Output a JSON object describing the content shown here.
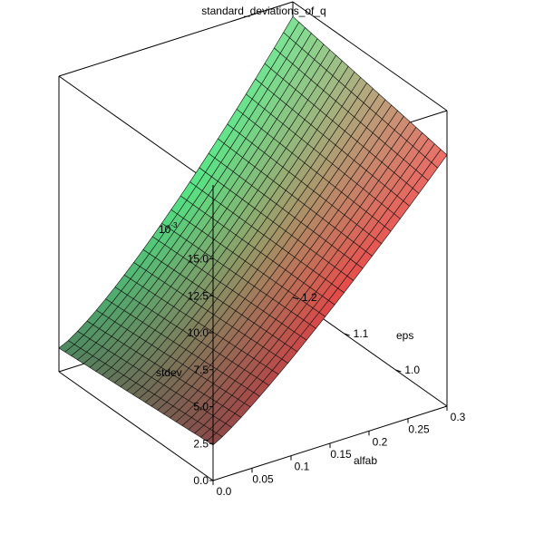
{
  "chart_data": {
    "type": "surface3d",
    "title": "standard_deviations_of_q",
    "x_axis": {
      "label": "alfab",
      "range": [
        0.0,
        0.3
      ],
      "ticks": [
        "0.0",
        "0.05",
        "0.1",
        "0.15",
        "0.2",
        "0.25",
        "0.3"
      ],
      "tick_values": [
        0.0,
        0.05,
        0.1,
        0.15,
        0.2,
        0.25,
        0.3
      ]
    },
    "y_axis": {
      "label": "eps",
      "range": [
        0.9,
        1.2
      ],
      "ticks": [
        "1.0",
        "1.1",
        "1.2"
      ],
      "tick_values": [
        1.0,
        1.1,
        1.2
      ]
    },
    "z_axis": {
      "label": "stdev",
      "multiplier_label": "10",
      "multiplier_exponent": "-3",
      "range": [
        0.0,
        0.02
      ],
      "ticks": [
        "0.0",
        "2.5",
        "5.0",
        "7.5",
        "10.0",
        "12.5",
        "15.0"
      ],
      "tick_values": [
        0.0,
        2.5,
        5.0,
        7.5,
        10.0,
        12.5,
        15.0
      ]
    },
    "grid_resolution": [
      25,
      25
    ],
    "corner_values_e-3": {
      "alfab0_eps0.9": 2.4,
      "alfab0.3_eps0.9": 17.0,
      "alfab0_eps1.2": 1.6,
      "alfab0.3_eps1.2": 19.0
    },
    "color_scale": {
      "low_eps": "#e84848",
      "high_eps": "#52e886",
      "shadow_side": "#4a4a48"
    }
  }
}
